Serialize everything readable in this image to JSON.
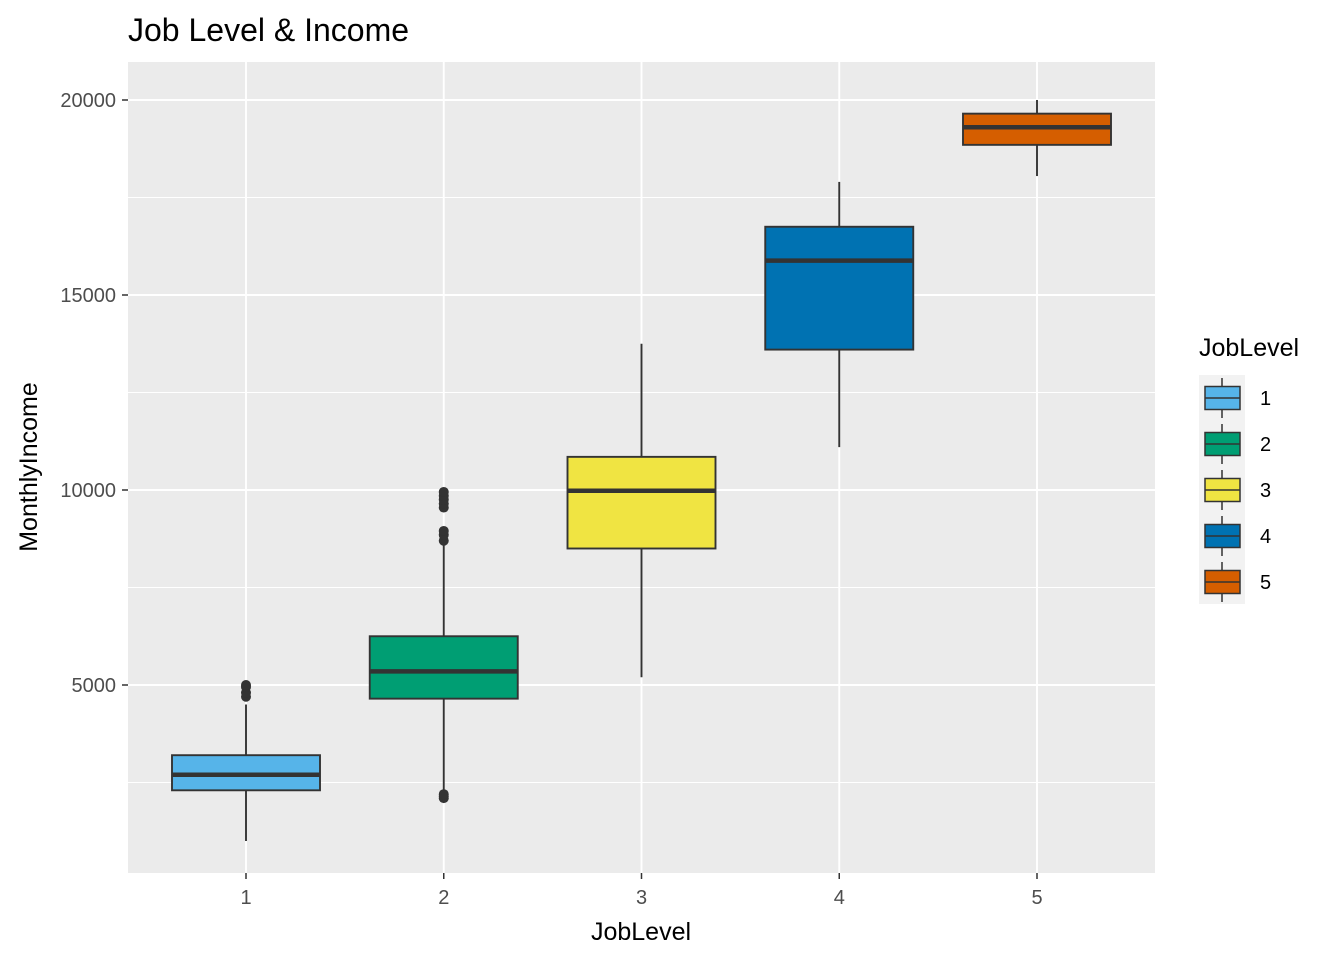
{
  "chart_data": {
    "type": "box",
    "title": "Job Level & Income",
    "xlabel": "JobLevel",
    "ylabel": "MonthlyIncome",
    "categories": [
      "1",
      "2",
      "3",
      "4",
      "5"
    ],
    "ylim": [
      0,
      21000
    ],
    "y_ticks": [
      5000,
      10000,
      15000,
      20000
    ],
    "grid": true,
    "legend": {
      "title": "JobLevel",
      "position": "right",
      "entries": [
        "1",
        "2",
        "3",
        "4",
        "5"
      ]
    },
    "series": [
      {
        "category": "1",
        "color": "#56B4E9",
        "whisker_low": 1000,
        "q1": 2300,
        "median": 2700,
        "q3": 3200,
        "whisker_high": 4500,
        "outliers": [
          4700,
          4800,
          4950,
          5000
        ]
      },
      {
        "category": "2",
        "color": "#009E73",
        "whisker_low": 2300,
        "q1": 4650,
        "median": 5350,
        "q3": 6250,
        "whisker_high": 8650,
        "outliers": [
          2100,
          2150,
          2200,
          8700,
          8850,
          8950,
          9550,
          9650,
          9750,
          9850,
          9950
        ]
      },
      {
        "category": "3",
        "color": "#F0E442",
        "whisker_low": 5200,
        "q1": 8500,
        "median": 9980,
        "q3": 10850,
        "whisker_high": 13750,
        "outliers": []
      },
      {
        "category": "4",
        "color": "#0072B2",
        "whisker_low": 11100,
        "q1": 13600,
        "median": 15880,
        "q3": 16750,
        "whisker_high": 17900,
        "outliers": []
      },
      {
        "category": "5",
        "color": "#D55E00",
        "whisker_low": 18050,
        "q1": 18850,
        "median": 19300,
        "q3": 19650,
        "whisker_high": 20000,
        "outliers": []
      }
    ]
  }
}
